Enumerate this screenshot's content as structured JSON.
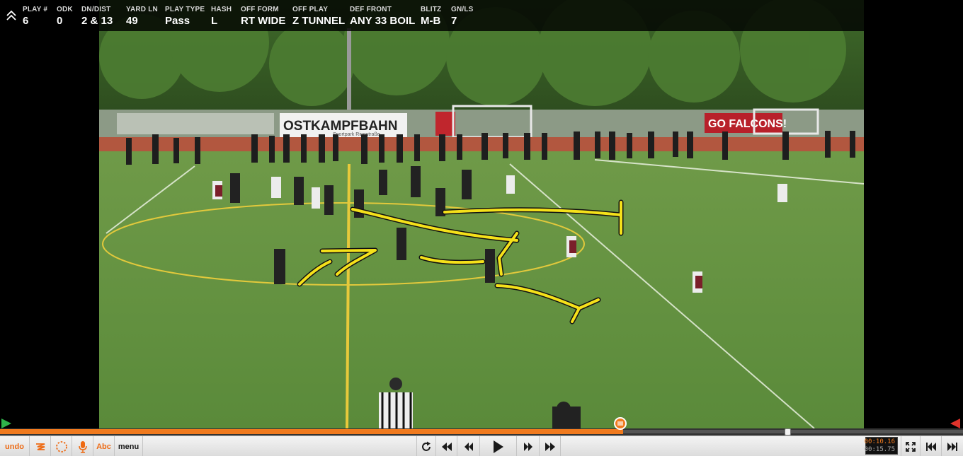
{
  "info_bar": {
    "fields": [
      {
        "label": "PLAY #",
        "value": "6"
      },
      {
        "label": "ODK",
        "value": "0"
      },
      {
        "label": "DN/DIST",
        "value": "2 & 13"
      },
      {
        "label": "YARD LN",
        "value": "49"
      },
      {
        "label": "PLAY TYPE",
        "value": "Pass"
      },
      {
        "label": "HASH",
        "value": "L"
      },
      {
        "label": "OFF FORM",
        "value": "RT WIDE"
      },
      {
        "label": "OFF PLAY",
        "value": "Z TUNNEL"
      },
      {
        "label": "DEF FRONT",
        "value": "ANY 33 BOIL"
      },
      {
        "label": "BLITZ",
        "value": "M-B"
      },
      {
        "label": "GN/LS",
        "value": "7"
      }
    ]
  },
  "video": {
    "banner_stadium": "OSTKAMPFBAHN",
    "banner_sub": "Sportpark Ringstraße",
    "banner_team": "GO FALCONS!",
    "played_fraction": 0.647
  },
  "toolbar": {
    "undo_label": "undo",
    "text_label": "Abc",
    "menu_label": "menu"
  },
  "time": {
    "current": "00:10.16",
    "total": "00:15.75"
  },
  "colors": {
    "accent": "#f07a1e",
    "telestration": "#f5e11a",
    "field": "#5f8a3e"
  }
}
